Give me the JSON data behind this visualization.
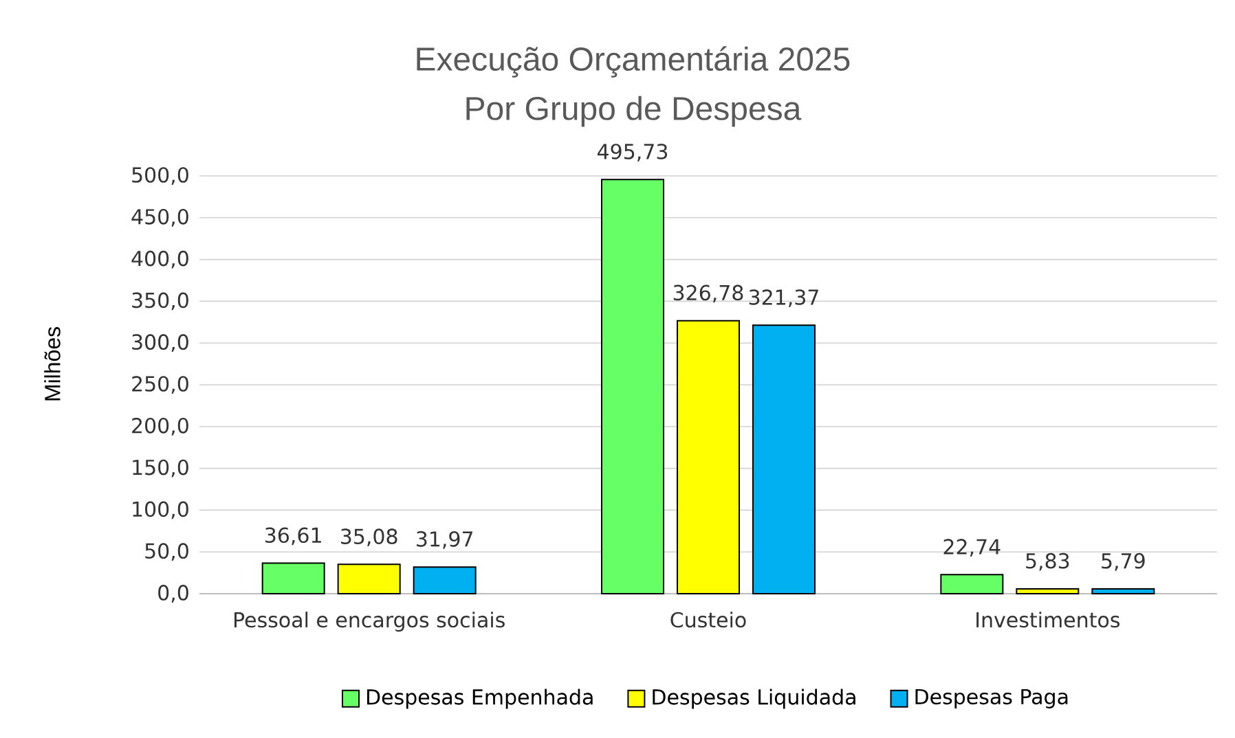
{
  "chart_data": {
    "type": "bar",
    "title": "Execução Orçamentária 2025",
    "subtitle": "Por Grupo de Despesa",
    "ylabel": "Milhões",
    "categories": [
      "Pessoal e encargos sociais",
      "Custeio",
      "Investimentos"
    ],
    "series": [
      {
        "name": "Despesas Empenhada",
        "color": "#66ff66",
        "values": [
          36.61,
          495.73,
          22.74
        ],
        "value_labels": [
          "36,61",
          "495,73",
          "22,74"
        ]
      },
      {
        "name": "Despesas Liquidada",
        "color": "#ffff00",
        "values": [
          35.08,
          326.78,
          5.83
        ],
        "value_labels": [
          "35,08",
          "326,78",
          "5,83"
        ]
      },
      {
        "name": "Despesas Paga",
        "color": "#00b0f0",
        "values": [
          31.97,
          321.37,
          5.79
        ],
        "value_labels": [
          "31,97",
          "321,37",
          "5,79"
        ]
      }
    ],
    "ylim": [
      0,
      500
    ],
    "yticks": [
      {
        "value": 0,
        "label": "0,0"
      },
      {
        "value": 50,
        "label": "50,0"
      },
      {
        "value": 100,
        "label": "100,0"
      },
      {
        "value": 150,
        "label": "150,0"
      },
      {
        "value": 200,
        "label": "200,0"
      },
      {
        "value": 250,
        "label": "250,0"
      },
      {
        "value": 300,
        "label": "300,0"
      },
      {
        "value": 350,
        "label": "350,0"
      },
      {
        "value": 400,
        "label": "400,0"
      },
      {
        "value": 450,
        "label": "450,0"
      },
      {
        "value": 500,
        "label": "500,0"
      }
    ],
    "grid": "y",
    "legend": "bottom"
  }
}
